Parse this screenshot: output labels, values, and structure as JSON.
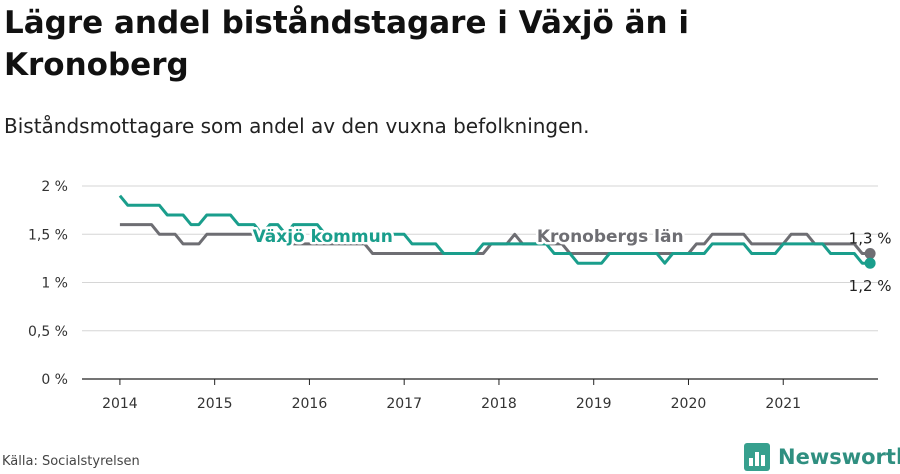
{
  "title": "Lägre andel biståndstagare i Växjö än i Kronoberg",
  "subtitle": "Biståndsmottagare som andel av den vuxna befolkningen.",
  "source": "Källa: Socialstyrelsen",
  "brand": {
    "name": "Newsworthy",
    "icon": "bar-chart-logo-icon"
  },
  "chart_data": {
    "type": "line",
    "y_ticks": [
      "0 %",
      "0,5 %",
      "1 %",
      "1,5 %",
      "2 %"
    ],
    "x_ticks": [
      "2014",
      "2015",
      "2016",
      "2017",
      "2018",
      "2019",
      "2020",
      "2021"
    ],
    "ylim": [
      0,
      2
    ],
    "grid": true,
    "colors": {
      "vaxjo": "#1a9e8c",
      "kronoberg": "#6e6e73"
    },
    "series": [
      {
        "key": "kronoberg",
        "name": "Kronobergs län",
        "end_label": "1,3 %",
        "points": [
          [
            "2014-01",
            1.6
          ],
          [
            "2014-02",
            1.6
          ],
          [
            "2014-03",
            1.6
          ],
          [
            "2014-04",
            1.6
          ],
          [
            "2014-05",
            1.6
          ],
          [
            "2014-06",
            1.5
          ],
          [
            "2014-07",
            1.5
          ],
          [
            "2014-08",
            1.5
          ],
          [
            "2014-09",
            1.4
          ],
          [
            "2014-10",
            1.4
          ],
          [
            "2014-11",
            1.4
          ],
          [
            "2014-12",
            1.5
          ],
          [
            "2015-01",
            1.5
          ],
          [
            "2015-02",
            1.5
          ],
          [
            "2015-03",
            1.5
          ],
          [
            "2015-04",
            1.5
          ],
          [
            "2015-05",
            1.5
          ],
          [
            "2015-06",
            1.5
          ],
          [
            "2015-07",
            1.5
          ],
          [
            "2015-08",
            1.5
          ],
          [
            "2015-09",
            1.5
          ],
          [
            "2015-10",
            1.4
          ],
          [
            "2015-11",
            1.4
          ],
          [
            "2015-12",
            1.4
          ],
          [
            "2016-01",
            1.4
          ],
          [
            "2016-02",
            1.4
          ],
          [
            "2016-03",
            1.4
          ],
          [
            "2016-04",
            1.4
          ],
          [
            "2016-05",
            1.4
          ],
          [
            "2016-06",
            1.4
          ],
          [
            "2016-07",
            1.4
          ],
          [
            "2016-08",
            1.4
          ],
          [
            "2016-09",
            1.3
          ],
          [
            "2016-10",
            1.3
          ],
          [
            "2016-11",
            1.3
          ],
          [
            "2016-12",
            1.3
          ],
          [
            "2017-01",
            1.3
          ],
          [
            "2017-02",
            1.3
          ],
          [
            "2017-03",
            1.3
          ],
          [
            "2017-04",
            1.3
          ],
          [
            "2017-05",
            1.3
          ],
          [
            "2017-06",
            1.3
          ],
          [
            "2017-07",
            1.3
          ],
          [
            "2017-08",
            1.3
          ],
          [
            "2017-09",
            1.3
          ],
          [
            "2017-10",
            1.3
          ],
          [
            "2017-11",
            1.3
          ],
          [
            "2017-12",
            1.4
          ],
          [
            "2018-01",
            1.4
          ],
          [
            "2018-02",
            1.4
          ],
          [
            "2018-03",
            1.5
          ],
          [
            "2018-04",
            1.4
          ],
          [
            "2018-05",
            1.4
          ],
          [
            "2018-06",
            1.4
          ],
          [
            "2018-07",
            1.4
          ],
          [
            "2018-08",
            1.4
          ],
          [
            "2018-09",
            1.4
          ],
          [
            "2018-10",
            1.3
          ],
          [
            "2018-11",
            1.3
          ],
          [
            "2018-12",
            1.3
          ],
          [
            "2019-01",
            1.3
          ],
          [
            "2019-02",
            1.3
          ],
          [
            "2019-03",
            1.3
          ],
          [
            "2019-04",
            1.3
          ],
          [
            "2019-05",
            1.3
          ],
          [
            "2019-06",
            1.3
          ],
          [
            "2019-07",
            1.3
          ],
          [
            "2019-08",
            1.3
          ],
          [
            "2019-09",
            1.3
          ],
          [
            "2019-10",
            1.3
          ],
          [
            "2019-11",
            1.3
          ],
          [
            "2019-12",
            1.3
          ],
          [
            "2020-01",
            1.3
          ],
          [
            "2020-02",
            1.4
          ],
          [
            "2020-03",
            1.4
          ],
          [
            "2020-04",
            1.5
          ],
          [
            "2020-05",
            1.5
          ],
          [
            "2020-06",
            1.5
          ],
          [
            "2020-07",
            1.5
          ],
          [
            "2020-08",
            1.5
          ],
          [
            "2020-09",
            1.4
          ],
          [
            "2020-10",
            1.4
          ],
          [
            "2020-11",
            1.4
          ],
          [
            "2020-12",
            1.4
          ],
          [
            "2021-01",
            1.4
          ],
          [
            "2021-02",
            1.5
          ],
          [
            "2021-03",
            1.5
          ],
          [
            "2021-04",
            1.5
          ],
          [
            "2021-05",
            1.4
          ],
          [
            "2021-06",
            1.4
          ],
          [
            "2021-07",
            1.4
          ],
          [
            "2021-08",
            1.4
          ],
          [
            "2021-09",
            1.4
          ],
          [
            "2021-10",
            1.4
          ],
          [
            "2021-11",
            1.3
          ],
          [
            "2021-12",
            1.3
          ]
        ]
      },
      {
        "key": "vaxjo",
        "name": "Växjö kommun",
        "end_label": "1,2 %",
        "points": [
          [
            "2014-01",
            1.9
          ],
          [
            "2014-02",
            1.8
          ],
          [
            "2014-03",
            1.8
          ],
          [
            "2014-04",
            1.8
          ],
          [
            "2014-05",
            1.8
          ],
          [
            "2014-06",
            1.8
          ],
          [
            "2014-07",
            1.7
          ],
          [
            "2014-08",
            1.7
          ],
          [
            "2014-09",
            1.7
          ],
          [
            "2014-10",
            1.6
          ],
          [
            "2014-11",
            1.6
          ],
          [
            "2014-12",
            1.7
          ],
          [
            "2015-01",
            1.7
          ],
          [
            "2015-02",
            1.7
          ],
          [
            "2015-03",
            1.7
          ],
          [
            "2015-04",
            1.6
          ],
          [
            "2015-05",
            1.6
          ],
          [
            "2015-06",
            1.6
          ],
          [
            "2015-07",
            1.5
          ],
          [
            "2015-08",
            1.6
          ],
          [
            "2015-09",
            1.6
          ],
          [
            "2015-10",
            1.5
          ],
          [
            "2015-11",
            1.6
          ],
          [
            "2015-12",
            1.6
          ],
          [
            "2016-01",
            1.6
          ],
          [
            "2016-02",
            1.6
          ],
          [
            "2016-03",
            1.5
          ],
          [
            "2016-04",
            1.5
          ],
          [
            "2016-05",
            1.5
          ],
          [
            "2016-06",
            1.5
          ],
          [
            "2016-07",
            1.5
          ],
          [
            "2016-08",
            1.5
          ],
          [
            "2016-09",
            1.5
          ],
          [
            "2016-10",
            1.5
          ],
          [
            "2016-11",
            1.5
          ],
          [
            "2016-12",
            1.5
          ],
          [
            "2017-01",
            1.5
          ],
          [
            "2017-02",
            1.4
          ],
          [
            "2017-03",
            1.4
          ],
          [
            "2017-04",
            1.4
          ],
          [
            "2017-05",
            1.4
          ],
          [
            "2017-06",
            1.3
          ],
          [
            "2017-07",
            1.3
          ],
          [
            "2017-08",
            1.3
          ],
          [
            "2017-09",
            1.3
          ],
          [
            "2017-10",
            1.3
          ],
          [
            "2017-11",
            1.4
          ],
          [
            "2017-12",
            1.4
          ],
          [
            "2018-01",
            1.4
          ],
          [
            "2018-02",
            1.4
          ],
          [
            "2018-03",
            1.4
          ],
          [
            "2018-04",
            1.4
          ],
          [
            "2018-05",
            1.4
          ],
          [
            "2018-06",
            1.4
          ],
          [
            "2018-07",
            1.4
          ],
          [
            "2018-08",
            1.3
          ],
          [
            "2018-09",
            1.3
          ],
          [
            "2018-10",
            1.3
          ],
          [
            "2018-11",
            1.2
          ],
          [
            "2018-12",
            1.2
          ],
          [
            "2019-01",
            1.2
          ],
          [
            "2019-02",
            1.2
          ],
          [
            "2019-03",
            1.3
          ],
          [
            "2019-04",
            1.3
          ],
          [
            "2019-05",
            1.3
          ],
          [
            "2019-06",
            1.3
          ],
          [
            "2019-07",
            1.3
          ],
          [
            "2019-08",
            1.3
          ],
          [
            "2019-09",
            1.3
          ],
          [
            "2019-10",
            1.2
          ],
          [
            "2019-11",
            1.3
          ],
          [
            "2019-12",
            1.3
          ],
          [
            "2020-01",
            1.3
          ],
          [
            "2020-02",
            1.3
          ],
          [
            "2020-03",
            1.3
          ],
          [
            "2020-04",
            1.4
          ],
          [
            "2020-05",
            1.4
          ],
          [
            "2020-06",
            1.4
          ],
          [
            "2020-07",
            1.4
          ],
          [
            "2020-08",
            1.4
          ],
          [
            "2020-09",
            1.3
          ],
          [
            "2020-10",
            1.3
          ],
          [
            "2020-11",
            1.3
          ],
          [
            "2020-12",
            1.3
          ],
          [
            "2021-01",
            1.4
          ],
          [
            "2021-02",
            1.4
          ],
          [
            "2021-03",
            1.4
          ],
          [
            "2021-04",
            1.4
          ],
          [
            "2021-05",
            1.4
          ],
          [
            "2021-06",
            1.4
          ],
          [
            "2021-07",
            1.3
          ],
          [
            "2021-08",
            1.3
          ],
          [
            "2021-09",
            1.3
          ],
          [
            "2021-10",
            1.3
          ],
          [
            "2021-11",
            1.2
          ],
          [
            "2021-12",
            1.2
          ]
        ]
      }
    ]
  }
}
